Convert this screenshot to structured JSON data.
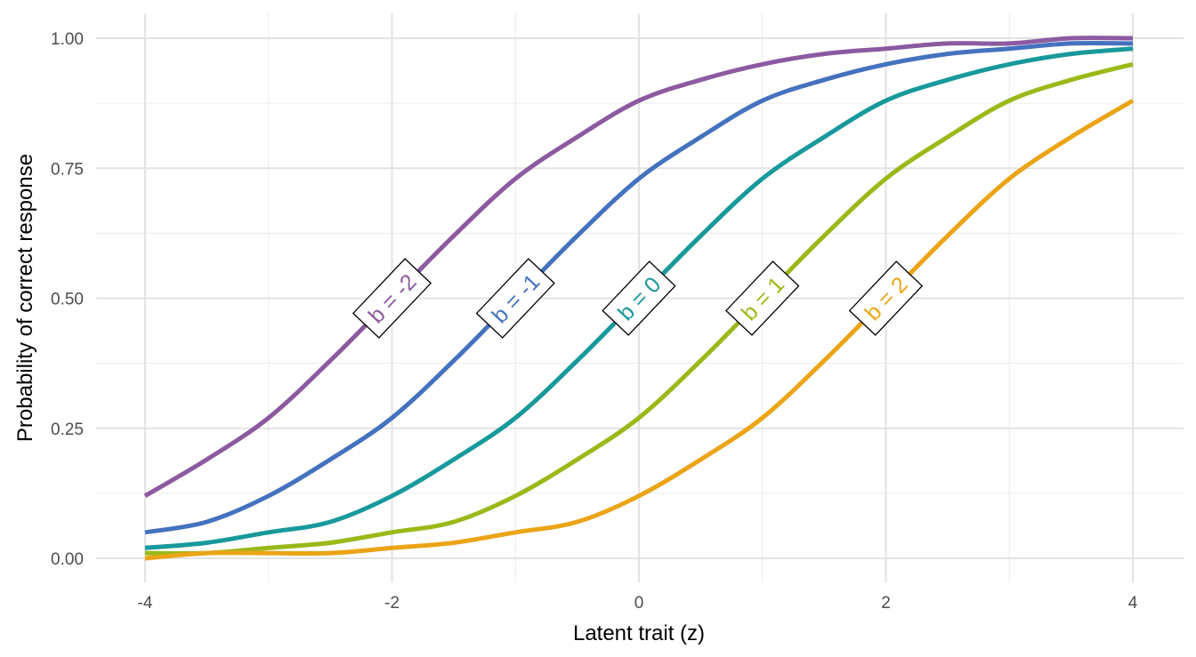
{
  "chart_data": {
    "type": "line",
    "title": "",
    "xlabel": "Latent trait (z)",
    "ylabel": "Probability of correct response",
    "xlim": [
      -4,
      4
    ],
    "ylim": [
      0,
      1
    ],
    "x_ticks": [
      -4,
      -2,
      0,
      2,
      4
    ],
    "x_tick_labels": [
      "-4",
      "-2",
      "0",
      "2",
      "4"
    ],
    "y_ticks": [
      0,
      0.25,
      0.5,
      0.75,
      1
    ],
    "y_tick_labels": [
      "0.00",
      "0.25",
      "0.50",
      "0.75",
      "1.00"
    ],
    "grid": true,
    "legend": "none",
    "x": [
      -4,
      -3.5,
      -3,
      -2.5,
      -2,
      -1.5,
      -1,
      -0.5,
      0,
      0.5,
      1,
      1.5,
      2,
      2.5,
      3,
      3.5,
      4
    ],
    "series": [
      {
        "name": "b = -2",
        "color": "#8C5AA0",
        "values": [
          0.12,
          0.19,
          0.27,
          0.38,
          0.5,
          0.62,
          0.73,
          0.81,
          0.88,
          0.92,
          0.95,
          0.97,
          0.98,
          0.99,
          0.99,
          1.0,
          1.0
        ]
      },
      {
        "name": "b = -1",
        "color": "#4472BE",
        "values": [
          0.05,
          0.07,
          0.12,
          0.19,
          0.27,
          0.38,
          0.5,
          0.62,
          0.73,
          0.81,
          0.88,
          0.92,
          0.95,
          0.97,
          0.98,
          0.99,
          0.99
        ]
      },
      {
        "name": "b = 0",
        "color": "#18999B",
        "values": [
          0.02,
          0.03,
          0.05,
          0.07,
          0.12,
          0.19,
          0.27,
          0.38,
          0.5,
          0.62,
          0.73,
          0.81,
          0.88,
          0.92,
          0.95,
          0.97,
          0.98
        ]
      },
      {
        "name": "b = 1",
        "color": "#9AB919",
        "values": [
          0.01,
          0.01,
          0.02,
          0.03,
          0.05,
          0.07,
          0.12,
          0.19,
          0.27,
          0.38,
          0.5,
          0.62,
          0.73,
          0.81,
          0.88,
          0.92,
          0.95
        ]
      },
      {
        "name": "b = 2",
        "color": "#EBA415",
        "values": [
          0.0,
          0.01,
          0.01,
          0.01,
          0.02,
          0.03,
          0.05,
          0.07,
          0.12,
          0.19,
          0.27,
          0.38,
          0.5,
          0.62,
          0.73,
          0.81,
          0.88
        ]
      }
    ],
    "labels": [
      {
        "text": "b = -2",
        "x": -2,
        "y": 0.5
      },
      {
        "text": "b = -1",
        "x": -1,
        "y": 0.5
      },
      {
        "text": "b = 0",
        "x": 0,
        "y": 0.5
      },
      {
        "text": "b = 1",
        "x": 1,
        "y": 0.5
      },
      {
        "text": "b = 2",
        "x": 2,
        "y": 0.5
      }
    ]
  }
}
